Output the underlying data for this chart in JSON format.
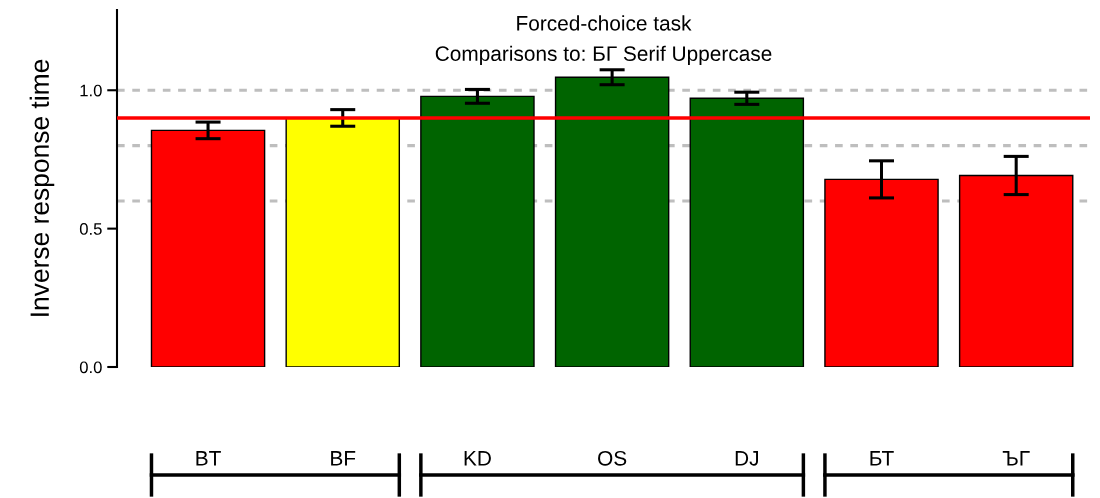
{
  "chart_data": {
    "type": "bar",
    "title": "Forced-choice task",
    "subtitle": "Comparisons to: БГ Serif Uppercase",
    "ylabel": "Inverse response time",
    "categories": [
      "BT",
      "BF",
      "KD",
      "OS",
      "DJ",
      "БТ",
      "ЪГ"
    ],
    "values": [
      0.855,
      0.9,
      0.978,
      1.047,
      0.971,
      0.678,
      0.692
    ],
    "errors": [
      0.03,
      0.03,
      0.025,
      0.027,
      0.022,
      0.067,
      0.069
    ],
    "colors": [
      "#ff0000",
      "#ffff00",
      "#006400",
      "#006400",
      "#006400",
      "#ff0000",
      "#ff0000"
    ],
    "ylim": [
      0,
      1.29
    ],
    "yticks": [
      {
        "value": 0,
        "label": "0.0"
      },
      {
        "value": 0.5,
        "label": "0.5"
      },
      {
        "value": 1,
        "label": "1.0"
      }
    ],
    "ref_lines": [
      {
        "axis": "y",
        "value": 0.6,
        "color": "#bebebe",
        "line_style": "dashed"
      },
      {
        "axis": "y",
        "value": 0.8,
        "color": "#bebebe",
        "line_style": "dashed"
      },
      {
        "axis": "y",
        "value": 1.0,
        "color": "#bebebe",
        "line_style": "dashed"
      },
      {
        "axis": "y",
        "value": 0.9,
        "color": "#ff0000",
        "line_style": "solid"
      }
    ],
    "grid": false,
    "legend": false
  }
}
